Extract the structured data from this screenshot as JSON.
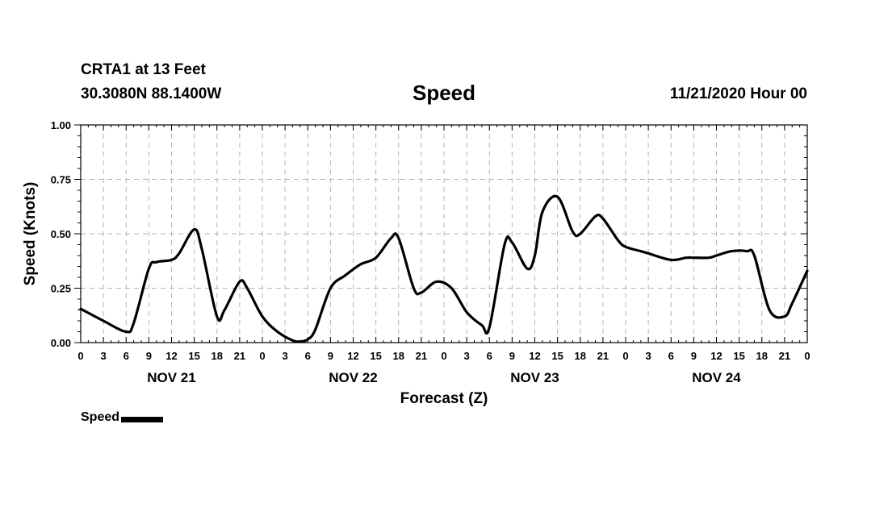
{
  "header": {
    "station": "CRTA1 at 13 Feet",
    "coords": "30.3080N 88.1400W",
    "title": "Speed",
    "issued": "11/21/2020 Hour 00"
  },
  "colors": {
    "line": "#000000",
    "grid": "#b4b4b4",
    "axis": "#000000"
  },
  "chart_data": {
    "type": "line",
    "title": "Speed",
    "xlabel": "Forecast (Z)",
    "ylabel": "Speed (Knots)",
    "xlim_hours": [
      0,
      96
    ],
    "ylim": [
      0,
      1
    ],
    "y_ticks": [
      "0.00",
      "0.25",
      "0.50",
      "0.75",
      "1.00"
    ],
    "y_tick_values": [
      0,
      0.25,
      0.5,
      0.75,
      1.0
    ],
    "x_tick_labels": [
      "0",
      "3",
      "6",
      "9",
      "12",
      "15",
      "18",
      "21",
      "0",
      "3",
      "6",
      "9",
      "12",
      "15",
      "18",
      "21",
      "0",
      "3",
      "6",
      "9",
      "12",
      "15",
      "18",
      "21",
      "0",
      "3",
      "6",
      "9",
      "12",
      "15",
      "18",
      "21",
      "0"
    ],
    "day_labels": [
      {
        "label": "NOV 21",
        "hour": 12
      },
      {
        "label": "NOV 22",
        "hour": 36
      },
      {
        "label": "NOV 23",
        "hour": 60
      },
      {
        "label": "NOV 24",
        "hour": 84
      }
    ],
    "grid": true,
    "legend": "bottom-left",
    "series": [
      {
        "name": "Speed",
        "x": [
          0,
          3,
          6,
          7,
          9,
          10,
          12,
          13,
          15,
          16,
          18,
          19,
          21,
          22,
          24,
          26,
          28,
          29,
          30,
          31,
          33,
          35,
          37,
          39,
          41,
          42,
          44,
          45,
          47,
          49,
          51,
          53,
          54,
          56,
          57,
          59,
          60,
          61,
          63,
          65,
          66,
          68,
          69,
          71,
          72,
          74,
          75,
          78,
          80,
          81,
          83,
          84,
          86,
          88,
          89,
          91,
          93,
          94,
          96
        ],
        "values": [
          0.155,
          0.1,
          0.05,
          0.09,
          0.34,
          0.37,
          0.38,
          0.41,
          0.52,
          0.43,
          0.12,
          0.15,
          0.28,
          0.25,
          0.12,
          0.05,
          0.01,
          0.005,
          0.015,
          0.06,
          0.25,
          0.31,
          0.36,
          0.39,
          0.48,
          0.48,
          0.25,
          0.23,
          0.28,
          0.25,
          0.14,
          0.08,
          0.07,
          0.45,
          0.46,
          0.34,
          0.4,
          0.6,
          0.67,
          0.51,
          0.5,
          0.58,
          0.57,
          0.47,
          0.44,
          0.42,
          0.41,
          0.38,
          0.39,
          0.39,
          0.39,
          0.4,
          0.42,
          0.42,
          0.4,
          0.15,
          0.12,
          0.18,
          0.33
        ]
      }
    ]
  },
  "legend": {
    "label": "Speed"
  }
}
